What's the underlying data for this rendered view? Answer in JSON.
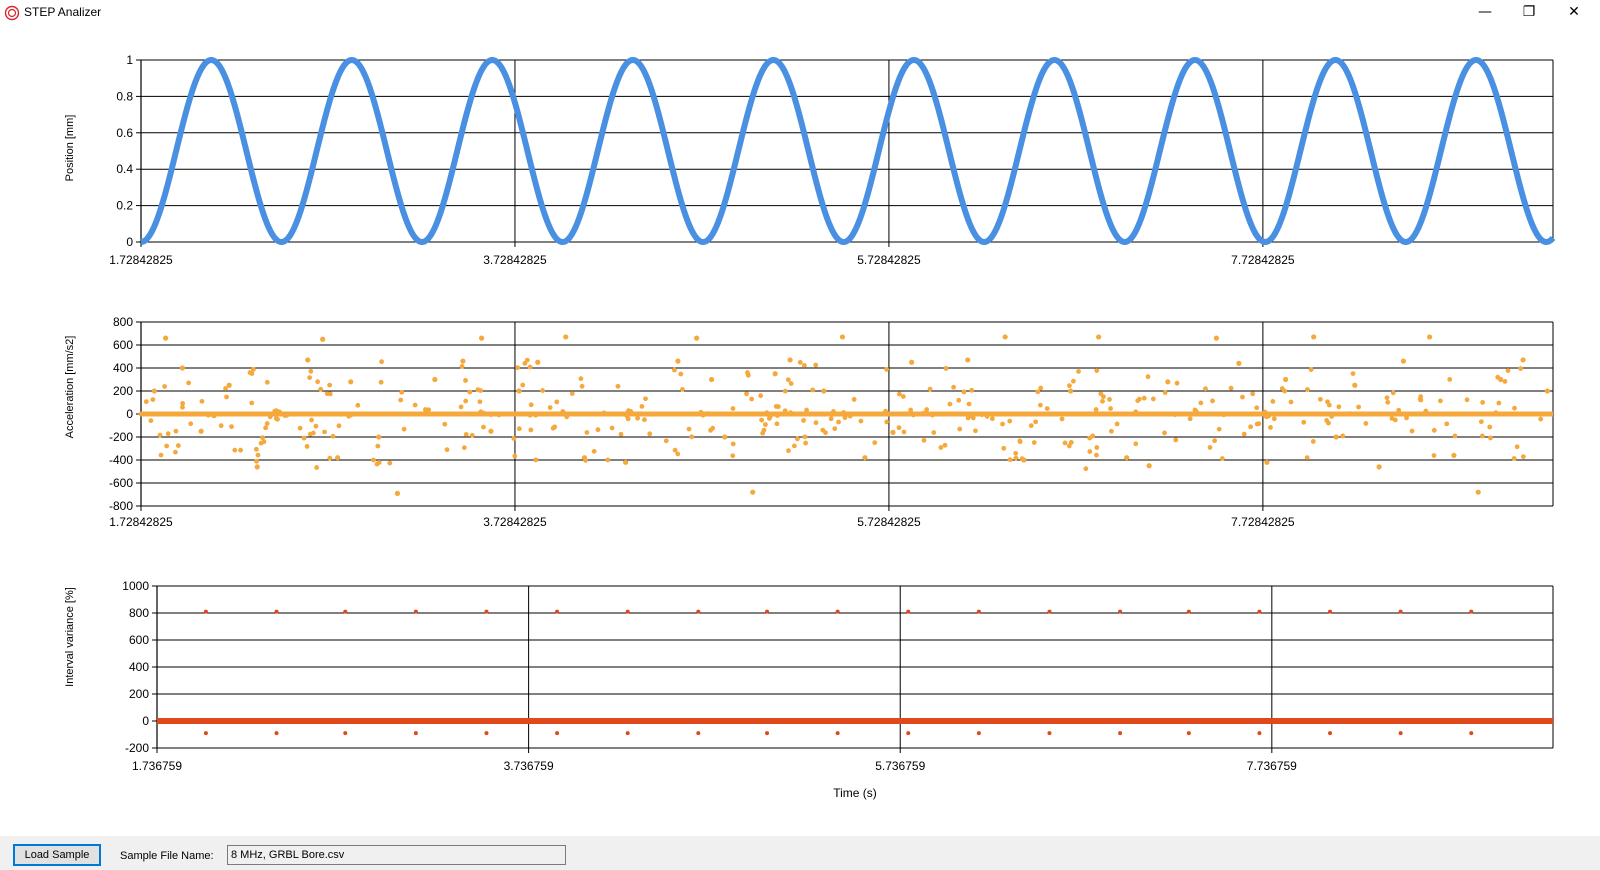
{
  "window": {
    "title": "STEP Analizer",
    "controls": {
      "minimize": "—",
      "maximize": "❐",
      "close": "✕"
    },
    "icon": "app-logo-icon"
  },
  "colors": {
    "position": "#4a90e2",
    "acceleration": "#f5a83b",
    "interval": "#e04a1a",
    "grid": "#000000"
  },
  "charts": {
    "position": {
      "ylabel": "Position [mm]",
      "yticks": [
        "1",
        "0.8",
        "0.6",
        "0.4",
        "0.2",
        "0"
      ],
      "xticks": [
        "1.72842825",
        "3.72842825",
        "5.72842825",
        "7.72842825"
      ]
    },
    "acceleration": {
      "ylabel": "Acceleration [mm/s2]",
      "yticks": [
        "800",
        "600",
        "400",
        "200",
        "0",
        "-200",
        "-400",
        "-600",
        "-800"
      ],
      "xticks": [
        "1.72842825",
        "3.72842825",
        "5.72842825",
        "7.72842825"
      ]
    },
    "interval": {
      "ylabel": "Interval variance [%]",
      "yticks": [
        "1000",
        "800",
        "600",
        "400",
        "200",
        "0",
        "-200"
      ],
      "xticks": [
        "1.736759",
        "3.736759",
        "5.736759",
        "7.736759"
      ],
      "xlabel": "Time (s)"
    }
  },
  "chart_data": [
    {
      "type": "line",
      "ylabel": "Position [mm]",
      "xlim": [
        1.72842825,
        9.28
      ],
      "ylim": [
        0,
        1
      ],
      "x_ticks": [
        1.72842825,
        3.72842825,
        5.72842825,
        7.72842825
      ],
      "y_ticks": [
        0,
        0.2,
        0.4,
        0.6,
        0.8,
        1
      ],
      "grid": true,
      "series": [
        {
          "color": "#4a90e2",
          "x": [
            1.72842825,
            2.1,
            2.48,
            2.85,
            3.23,
            3.6,
            3.98,
            4.35,
            4.73,
            5.1,
            5.48,
            5.85,
            6.23,
            6.6,
            6.98,
            7.35,
            7.73,
            8.1,
            8.48,
            8.85,
            9.23,
            9.28
          ],
          "y": [
            0,
            1,
            0,
            1,
            0,
            1,
            0,
            1,
            0,
            1,
            0,
            1,
            0,
            1,
            0,
            1,
            0,
            1,
            0,
            1,
            0,
            0
          ]
        }
      ]
    },
    {
      "type": "scatter",
      "ylabel": "Acceleration [mm/s2]",
      "xlim": [
        1.72842825,
        9.28
      ],
      "ylim": [
        -800,
        800
      ],
      "x_ticks": [
        1.72842825,
        3.72842825,
        5.72842825,
        7.72842825
      ],
      "y_ticks": [
        -800,
        -600,
        -400,
        -200,
        0,
        200,
        400,
        600,
        800
      ],
      "grid": true,
      "series": [
        {
          "color": "#f5a83b",
          "x": [
            1.8,
            1.86,
            1.95,
            2.05,
            2.2,
            2.35,
            2.55,
            2.62,
            2.7,
            2.78,
            2.85,
            3.0,
            3.1,
            3.3,
            3.37,
            3.45,
            3.55,
            3.6,
            3.75,
            3.85,
            4.0,
            4.1,
            4.32,
            4.45,
            4.6,
            4.7,
            4.78,
            4.85,
            5.0,
            5.12,
            5.2,
            5.38,
            5.48,
            5.6,
            5.75,
            5.85,
            6.0,
            6.15,
            6.35,
            6.45,
            6.6,
            6.7,
            6.85,
            7.0,
            7.12,
            7.22,
            7.4,
            7.48,
            7.6,
            7.75,
            7.85,
            8.0,
            8.12,
            8.22,
            8.35,
            8.48,
            8.62,
            8.75,
            8.88,
            9.0,
            9.12,
            9.25
          ],
          "y": [
            200,
            660,
            400,
            -150,
            250,
            -460,
            0,
            470,
            650,
            -380,
            280,
            -200,
            -690,
            300,
            0,
            460,
            660,
            -150,
            200,
            450,
            670,
            -380,
            -420,
            0,
            460,
            660,
            300,
            -200,
            -680,
            350,
            470,
            200,
            670,
            -380,
            -160,
            450,
            0,
            470,
            670,
            -400,
            0,
            200,
            670,
            -380,
            -450,
            280,
            0,
            660,
            440,
            -420,
            300,
            670,
            -200,
            250,
            -460,
            460,
            670,
            -360,
            -680,
            300,
            470,
            200
          ]
        }
      ]
    },
    {
      "type": "scatter",
      "ylabel": "Interval variance [%]",
      "xlabel": "Time (s)",
      "xlim": [
        1.736759,
        9.25
      ],
      "ylim": [
        -200,
        1000
      ],
      "x_ticks": [
        1.736759,
        3.736759,
        5.736759,
        7.736759
      ],
      "y_ticks": [
        -200,
        0,
        200,
        400,
        600,
        800,
        1000
      ],
      "grid": true,
      "series": [
        {
          "color": "#e04a1a",
          "x": [
            2.0,
            2.38,
            2.75,
            3.13,
            3.51,
            3.89,
            4.27,
            4.65,
            5.02,
            5.4,
            5.78,
            6.16,
            6.54,
            6.92,
            7.29,
            7.67,
            8.05,
            8.43,
            8.81,
            9.19
          ],
          "y": [
            810,
            810,
            810,
            810,
            810,
            810,
            810,
            810,
            810,
            810,
            810,
            810,
            810,
            810,
            810,
            810,
            810,
            810,
            810,
            0
          ]
        }
      ]
    }
  ]
}
